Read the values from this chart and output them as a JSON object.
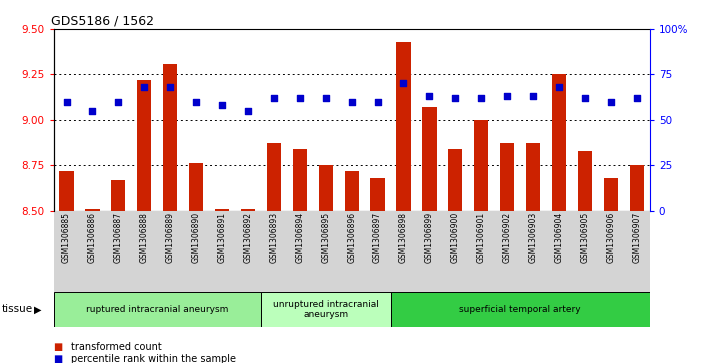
{
  "title": "GDS5186 / 1562",
  "samples": [
    "GSM1306885",
    "GSM1306886",
    "GSM1306887",
    "GSM1306888",
    "GSM1306889",
    "GSM1306890",
    "GSM1306891",
    "GSM1306892",
    "GSM1306893",
    "GSM1306894",
    "GSM1306895",
    "GSM1306896",
    "GSM1306897",
    "GSM1306898",
    "GSM1306899",
    "GSM1306900",
    "GSM1306901",
    "GSM1306902",
    "GSM1306903",
    "GSM1306904",
    "GSM1306905",
    "GSM1306906",
    "GSM1306907"
  ],
  "transformed_count": [
    8.72,
    8.51,
    8.67,
    9.22,
    9.31,
    8.76,
    8.51,
    8.51,
    8.87,
    8.84,
    8.75,
    8.72,
    8.68,
    9.43,
    9.07,
    8.84,
    9.0,
    8.87,
    8.87,
    9.25,
    8.83,
    8.68,
    8.75
  ],
  "percentile_rank": [
    60,
    55,
    60,
    68,
    68,
    60,
    58,
    55,
    62,
    62,
    62,
    60,
    60,
    70,
    63,
    62,
    62,
    63,
    63,
    68,
    62,
    60,
    62
  ],
  "ylim_left": [
    8.5,
    9.5
  ],
  "ylim_right": [
    0,
    100
  ],
  "yticks_left": [
    8.5,
    8.75,
    9.0,
    9.25,
    9.5
  ],
  "yticks_right": [
    0,
    25,
    50,
    75,
    100
  ],
  "ytick_labels_right": [
    "0",
    "25",
    "50",
    "75",
    "100%"
  ],
  "bar_color": "#cc2200",
  "dot_color": "#0000cc",
  "bg_color": "#d4d4d4",
  "plot_bg": "#ffffff",
  "tissue_groups": [
    {
      "label": "ruptured intracranial aneurysm",
      "start": 0,
      "end": 8,
      "color": "#99ee99"
    },
    {
      "label": "unruptured intracranial\naneurysm",
      "start": 8,
      "end": 13,
      "color": "#bbffbb"
    },
    {
      "label": "superficial temporal artery",
      "start": 13,
      "end": 23,
      "color": "#33cc44"
    }
  ],
  "tissue_label": "tissue",
  "legend_items": [
    {
      "label": "transformed count",
      "color": "#cc2200"
    },
    {
      "label": "percentile rank within the sample",
      "color": "#0000cc"
    }
  ]
}
